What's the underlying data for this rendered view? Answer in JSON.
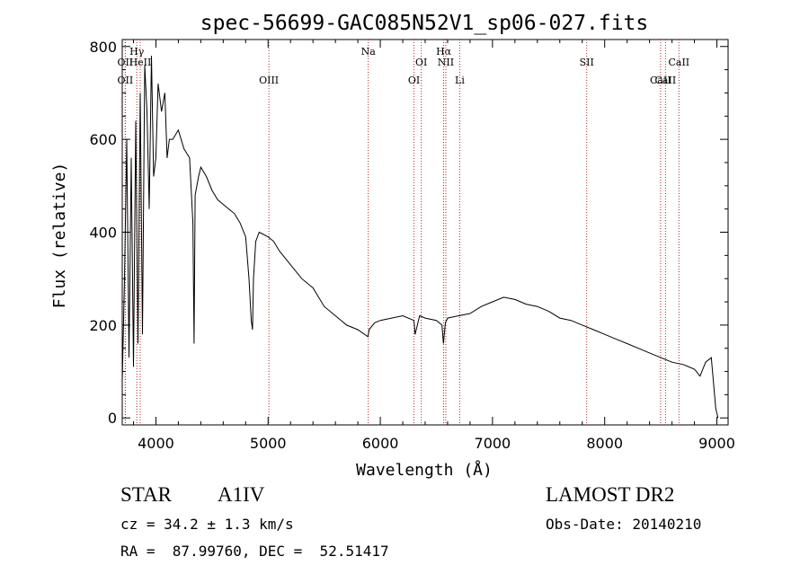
{
  "chart_data": {
    "type": "line",
    "title": "spec-56699-GAC085N52V1_sp06-027.fits",
    "xlabel": "Wavelength (Å)",
    "ylabel": "Flux (relative)",
    "xlim": [
      3700,
      9100
    ],
    "ylim": [
      -15,
      815
    ],
    "xticks": [
      4000,
      5000,
      6000,
      7000,
      8000,
      9000
    ],
    "yticks": [
      0,
      200,
      400,
      600,
      800
    ],
    "grid": false,
    "line_color": "#000000",
    "marker_color": "#b22222",
    "series": [
      {
        "x": [
          3700,
          3720,
          3740,
          3760,
          3780,
          3800,
          3820,
          3840,
          3860,
          3880,
          3900,
          3920,
          3940,
          3960,
          3980,
          4000,
          4020,
          4050,
          4080,
          4100,
          4120,
          4150,
          4200,
          4250,
          4300,
          4330,
          4340,
          4350,
          4380,
          4400,
          4450,
          4500,
          4550,
          4600,
          4650,
          4700,
          4750,
          4800,
          4830,
          4850,
          4861,
          4870,
          4890,
          4920,
          5000,
          5050,
          5100,
          5200,
          5300,
          5400,
          5500,
          5600,
          5700,
          5800,
          5890,
          5900,
          5950,
          6000,
          6100,
          6200,
          6300,
          6310,
          6350,
          6400,
          6500,
          6550,
          6563,
          6580,
          6600,
          6700,
          6800,
          6900,
          7000,
          7100,
          7200,
          7300,
          7400,
          7500,
          7600,
          7700,
          7800,
          7900,
          8000,
          8100,
          8200,
          8300,
          8400,
          8500,
          8600,
          8700,
          8800,
          8850,
          8900,
          8950,
          8990,
          9010
        ],
        "y": [
          80,
          300,
          600,
          130,
          560,
          110,
          640,
          160,
          700,
          180,
          760,
          660,
          450,
          780,
          520,
          560,
          720,
          660,
          700,
          560,
          600,
          600,
          620,
          580,
          560,
          420,
          160,
          480,
          520,
          540,
          520,
          490,
          470,
          460,
          450,
          440,
          420,
          390,
          300,
          210,
          190,
          300,
          380,
          400,
          390,
          380,
          360,
          330,
          300,
          280,
          240,
          220,
          200,
          190,
          175,
          190,
          205,
          210,
          215,
          220,
          210,
          180,
          220,
          215,
          210,
          200,
          160,
          205,
          215,
          220,
          225,
          240,
          250,
          260,
          255,
          245,
          240,
          230,
          215,
          210,
          200,
          190,
          180,
          170,
          160,
          150,
          140,
          130,
          120,
          115,
          105,
          90,
          120,
          130,
          20,
          0
        ]
      }
    ],
    "markers_top": [
      {
        "label": "Hγ",
        "x": 3830
      },
      {
        "label": "Na",
        "x": 5893
      },
      {
        "label": "Hα",
        "x": 6565
      }
    ],
    "markers": [
      {
        "label": "OII",
        "x": 3727
      },
      {
        "label": "OII",
        "x": 3727
      },
      {
        "label": "HeII",
        "x": 3860
      },
      {
        "label": "OIII",
        "x": 5007
      },
      {
        "label": "OI",
        "x": 6365
      },
      {
        "label": "OI",
        "x": 6300
      },
      {
        "label": "NII",
        "x": 6584
      },
      {
        "label": "Li",
        "x": 6708
      },
      {
        "label": "SII",
        "x": 7840
      },
      {
        "label": "CaII",
        "x": 8542
      },
      {
        "label": "CaII",
        "x": 8662
      },
      {
        "label": "CaII",
        "x": 8498
      }
    ]
  },
  "info": {
    "object_type": "STAR",
    "subclass": "A1IV",
    "survey": "LAMOST DR2",
    "cz": "cz = 34.2 ± 1.3 km/s",
    "obs_date": "Obs-Date: 20140210",
    "coords": "RA =  87.99760, DEC =  52.51417"
  }
}
